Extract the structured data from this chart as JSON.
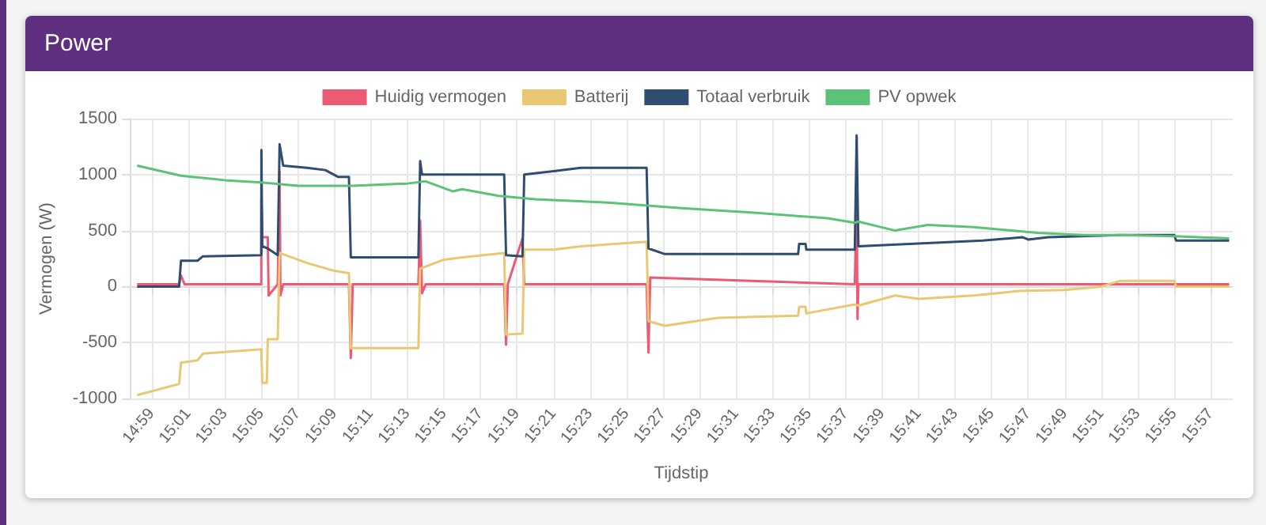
{
  "chart_data": {
    "type": "line",
    "title": "Power",
    "xlabel": "Tijdstip",
    "ylabel": "Vermogen (W)",
    "xlim": [
      14.9633,
      15.97
    ],
    "ylim": [
      -1000,
      1500
    ],
    "yticks": [
      -1000,
      -500,
      0,
      500,
      1000,
      1500
    ],
    "xticks": [
      {
        "value": 14.9833,
        "label": "14:59"
      },
      {
        "value": 15.0167,
        "label": "15:01"
      },
      {
        "value": 15.05,
        "label": "15:03"
      },
      {
        "value": 15.0833,
        "label": "15:05"
      },
      {
        "value": 15.1167,
        "label": "15:07"
      },
      {
        "value": 15.15,
        "label": "15:09"
      },
      {
        "value": 15.1833,
        "label": "15:11"
      },
      {
        "value": 15.2167,
        "label": "15:13"
      },
      {
        "value": 15.25,
        "label": "15:15"
      },
      {
        "value": 15.2833,
        "label": "15:17"
      },
      {
        "value": 15.3167,
        "label": "15:19"
      },
      {
        "value": 15.35,
        "label": "15:21"
      },
      {
        "value": 15.3833,
        "label": "15:23"
      },
      {
        "value": 15.4167,
        "label": "15:25"
      },
      {
        "value": 15.45,
        "label": "15:27"
      },
      {
        "value": 15.4833,
        "label": "15:29"
      },
      {
        "value": 15.5167,
        "label": "15:31"
      },
      {
        "value": 15.55,
        "label": "15:33"
      },
      {
        "value": 15.5833,
        "label": "15:35"
      },
      {
        "value": 15.6167,
        "label": "15:37"
      },
      {
        "value": 15.65,
        "label": "15:39"
      },
      {
        "value": 15.6833,
        "label": "15:41"
      },
      {
        "value": 15.7167,
        "label": "15:43"
      },
      {
        "value": 15.75,
        "label": "15:45"
      },
      {
        "value": 15.7833,
        "label": "15:47"
      },
      {
        "value": 15.8167,
        "label": "15:49"
      },
      {
        "value": 15.85,
        "label": "15:51"
      },
      {
        "value": 15.8833,
        "label": "15:53"
      },
      {
        "value": 15.9167,
        "label": "15:55"
      },
      {
        "value": 15.95,
        "label": "15:57"
      }
    ],
    "grid": true,
    "legend": "top",
    "series": [
      {
        "name": "Huidig vermogen",
        "color": "#ec5a75",
        "x": [
          14.97,
          15.0083,
          15.01,
          15.0133,
          15.0833,
          15.0834,
          15.0842,
          15.0892,
          15.09,
          15.0983,
          15.1,
          15.1008,
          15.1033,
          15.1633,
          15.165,
          15.1667,
          15.2267,
          15.2283,
          15.23,
          15.2333,
          15.305,
          15.3067,
          15.3083,
          15.3217,
          15.3233,
          15.435,
          15.4367,
          15.4383,
          15.625,
          15.6267,
          15.6275,
          15.6283,
          15.75,
          15.9667
        ],
        "values": [
          20,
          20,
          100,
          20,
          20,
          780,
          440,
          440,
          -80,
          20,
          1030,
          -80,
          20,
          20,
          -640,
          20,
          20,
          590,
          -60,
          20,
          20,
          -520,
          20,
          430,
          20,
          20,
          -590,
          80,
          20,
          780,
          -290,
          20,
          20,
          20
        ]
      },
      {
        "name": "Batterij",
        "color": "#e8c872",
        "x": [
          14.97,
          15.0083,
          15.01,
          15.025,
          15.03,
          15.0833,
          15.0842,
          15.0883,
          15.0892,
          15.0983,
          15.1,
          15.125,
          15.15,
          15.1633,
          15.165,
          15.2267,
          15.2283,
          15.25,
          15.2667,
          15.305,
          15.3067,
          15.3217,
          15.3233,
          15.35,
          15.375,
          15.435,
          15.4367,
          15.4517,
          15.5,
          15.5733,
          15.5742,
          15.58,
          15.5808,
          15.625,
          15.6283,
          15.6617,
          15.6833,
          15.7333,
          15.775,
          15.8167,
          15.85,
          15.8667,
          15.9167,
          15.9183,
          15.9667
        ],
        "values": [
          -970,
          -870,
          -680,
          -660,
          -600,
          -560,
          -860,
          -860,
          -470,
          -470,
          300,
          210,
          140,
          120,
          -550,
          -550,
          160,
          240,
          260,
          300,
          -430,
          -420,
          330,
          330,
          360,
          400,
          -310,
          -350,
          -280,
          -260,
          -180,
          -180,
          -240,
          -160,
          -170,
          -80,
          -110,
          -80,
          -40,
          -30,
          0,
          50,
          50,
          0,
          0
        ]
      },
      {
        "name": "Totaal verbruik",
        "color": "#2f4d70",
        "x": [
          14.97,
          15.0083,
          15.01,
          15.025,
          15.03,
          15.0833,
          15.0834,
          15.0842,
          15.0892,
          15.0983,
          15.1,
          15.1033,
          15.125,
          15.1417,
          15.1533,
          15.1633,
          15.165,
          15.2267,
          15.2283,
          15.23,
          15.305,
          15.3067,
          15.3217,
          15.3233,
          15.35,
          15.375,
          15.435,
          15.4367,
          15.4517,
          15.5733,
          15.5742,
          15.58,
          15.5808,
          15.625,
          15.6267,
          15.6283,
          15.7417,
          15.7783,
          15.7833,
          15.8017,
          15.8667,
          15.9167,
          15.9183,
          15.9667
        ],
        "values": [
          0,
          0,
          230,
          230,
          270,
          280,
          1220,
          360,
          340,
          280,
          1270,
          1080,
          1060,
          1040,
          980,
          980,
          260,
          260,
          1120,
          1000,
          1000,
          280,
          270,
          1000,
          1030,
          1060,
          1060,
          340,
          290,
          290,
          380,
          380,
          330,
          330,
          1350,
          360,
          410,
          440,
          420,
          440,
          460,
          460,
          410,
          410
        ]
      },
      {
        "name": "PV opwek",
        "color": "#5cc277",
        "x": [
          14.97,
          15.01,
          15.05,
          15.0833,
          15.1167,
          15.1667,
          15.2167,
          15.2333,
          15.2583,
          15.2667,
          15.3,
          15.3333,
          15.4,
          15.4667,
          15.5333,
          15.6,
          15.625,
          15.6283,
          15.6617,
          15.6917,
          15.7333,
          15.7917,
          15.8333,
          15.8667,
          15.9167,
          15.9667
        ],
        "values": [
          1080,
          990,
          950,
          930,
          900,
          900,
          920,
          940,
          850,
          870,
          810,
          780,
          750,
          700,
          660,
          610,
          570,
          580,
          500,
          550,
          530,
          480,
          460,
          460,
          450,
          430
        ]
      }
    ]
  }
}
